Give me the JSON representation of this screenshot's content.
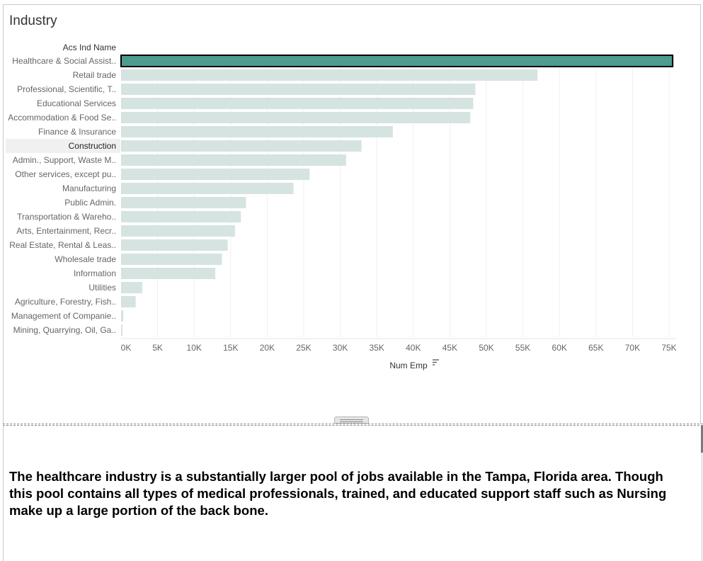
{
  "dashboard": {
    "title": "Industry",
    "narrative": "The healthcare industry is a substantially larger pool of jobs available in the Tampa, Florida area. Though this pool contains all types of medical professionals, trained, and educated support staff such as Nursing make up a large portion of the back bone."
  },
  "chart_data": {
    "type": "bar",
    "orientation": "horizontal",
    "title": "Industry",
    "category_header": "Acs Ind Name",
    "xlabel": "Num Emp",
    "sort_icon": "sort-descending-icon",
    "categories": [
      "Healthcare & Social Assist..",
      "Retail trade",
      "Professional, Scientific, T..",
      "Educational Services",
      "Accommodation & Food Se..",
      "Finance & Insurance",
      "Construction",
      "Admin., Support, Waste M..",
      "Other services, except pu..",
      "Manufacturing",
      "Public Admin.",
      "Transportation & Wareho..",
      "Arts, Entertainment, Recr..",
      "Real Estate, Rental & Leas..",
      "Wholesale trade",
      "Information",
      "Utilities",
      "Agriculture, Forestry, Fish..",
      "Management of Companie..",
      "Mining, Quarrying, Oil, Ga.."
    ],
    "values": [
      75500,
      57000,
      48500,
      48200,
      47800,
      37200,
      32900,
      30800,
      25800,
      23600,
      17100,
      16400,
      15600,
      14600,
      13800,
      12900,
      2900,
      2000,
      300,
      50
    ],
    "xlim": [
      0,
      77000
    ],
    "ticks": [
      {
        "value": 0,
        "label": "0K"
      },
      {
        "value": 5000,
        "label": "5K"
      },
      {
        "value": 10000,
        "label": "10K"
      },
      {
        "value": 15000,
        "label": "15K"
      },
      {
        "value": 20000,
        "label": "20K"
      },
      {
        "value": 25000,
        "label": "25K"
      },
      {
        "value": 30000,
        "label": "30K"
      },
      {
        "value": 35000,
        "label": "35K"
      },
      {
        "value": 40000,
        "label": "40K"
      },
      {
        "value": 45000,
        "label": "45K"
      },
      {
        "value": 50000,
        "label": "50K"
      },
      {
        "value": 55000,
        "label": "55K"
      },
      {
        "value": 60000,
        "label": "60K"
      },
      {
        "value": 65000,
        "label": "65K"
      },
      {
        "value": 70000,
        "label": "70K"
      },
      {
        "value": 75000,
        "label": "75K"
      }
    ],
    "selected_index": 0,
    "hover_index": 6,
    "grid": true,
    "colors": {
      "selected": "#4e9b8f",
      "unselected": "#d5e3e1",
      "selected_outline": "#000000",
      "hover_row": "#f0f0f0",
      "gridline": "#efefef"
    }
  }
}
